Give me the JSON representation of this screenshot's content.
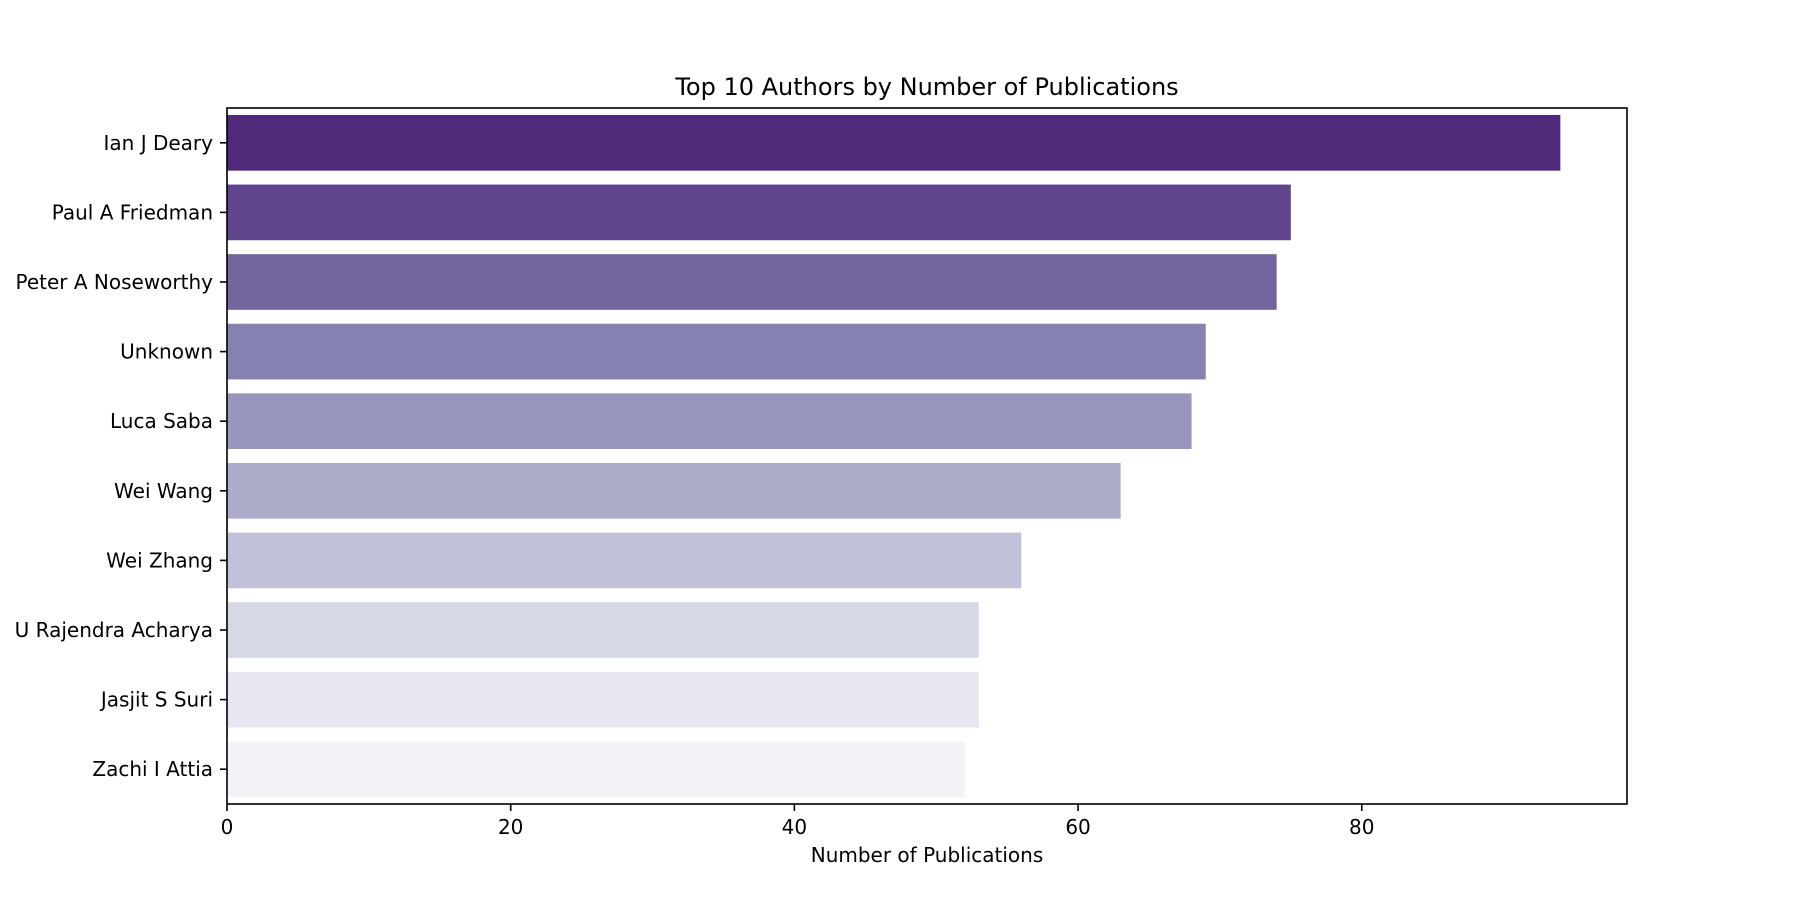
{
  "chart_data": {
    "type": "bar",
    "orientation": "horizontal",
    "title": "Top 10 Authors by Number of Publications",
    "xlabel": "Number of Publications",
    "ylabel": "",
    "categories": [
      "Ian J Deary",
      "Paul A Friedman",
      "Peter A Noseworthy",
      "Unknown",
      "Luca Saba",
      "Wei Wang",
      "Wei Zhang",
      "U Rajendra Acharya",
      "Jasjit S Suri",
      "Zachi I Attia"
    ],
    "values": [
      94,
      75,
      74,
      69,
      68,
      63,
      56,
      53,
      53,
      52
    ],
    "colors": [
      "#4f2a7b",
      "#61468d",
      "#74659e",
      "#8582b2",
      "#9896be",
      "#adacca",
      "#c1c2d9",
      "#d6d8e6",
      "#e6e5f0",
      "#f3f2f7"
    ],
    "xlim": [
      0,
      98.7
    ],
    "xticks": [
      0,
      20,
      40,
      60,
      80
    ],
    "grid": false,
    "legend": "none"
  }
}
